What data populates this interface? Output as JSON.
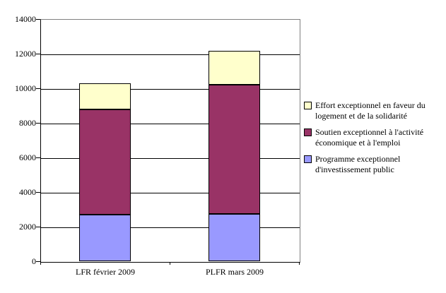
{
  "chart_data": {
    "type": "bar",
    "stacked": true,
    "title": "",
    "xlabel": "",
    "ylabel": "",
    "categories": [
      "LFR février 2009",
      "PLFR mars 2009"
    ],
    "series": [
      {
        "name": "Programme exceptionnel d'investissement public",
        "color": "#9999FF",
        "values": [
          2700,
          2750
        ]
      },
      {
        "name": "Soutien exceptionnel à l'activité économique et à l'emploi",
        "color": "#993366",
        "values": [
          6100,
          7450
        ]
      },
      {
        "name": "Effort exceptionnel en faveur du logement et de la solidarité",
        "color": "#FFFFCC",
        "values": [
          1500,
          1950
        ]
      }
    ],
    "stack_totals": [
      10300,
      12150
    ],
    "ylim": [
      0,
      14000
    ],
    "ytick_interval": 2000,
    "ytick_labels": [
      "0",
      "2000",
      "4000",
      "6000",
      "8000",
      "10000",
      "12000",
      "14000"
    ],
    "grid": true,
    "legend_position": "right",
    "legend_entries_top_to_bottom": [
      "Effort exceptionnel en faveur du logement et de la solidarité",
      "Soutien exceptionnel à l'activité économique et à l'emploi",
      "Programme exceptionnel d'investissement public"
    ]
  },
  "colors": {
    "background": "#FFFFFF",
    "axis": "#000000",
    "gridline": "#000000",
    "plot_border": "#808080",
    "series_programme": "#9999FF",
    "series_soutien": "#993366",
    "series_effort": "#FFFFCC"
  }
}
